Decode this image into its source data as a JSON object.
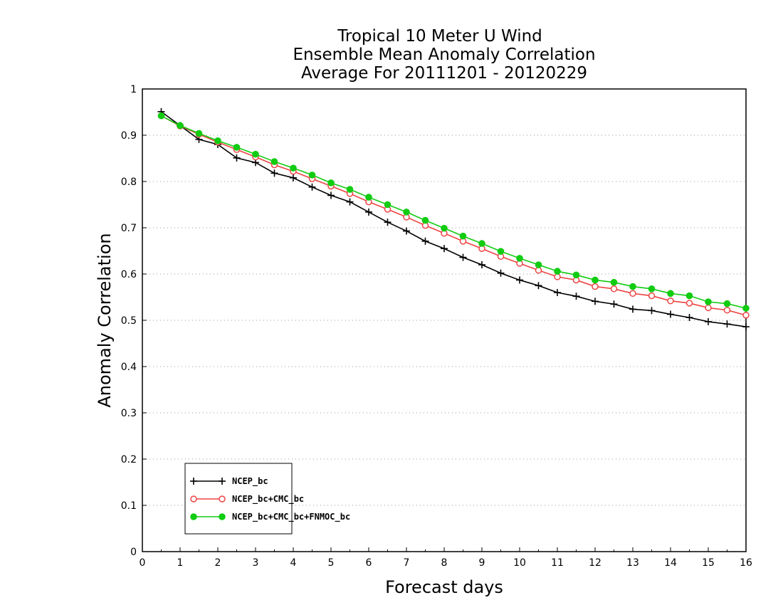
{
  "chart_data": {
    "type": "line",
    "title": [
      "Tropical 10 Meter U Wind",
      "Ensemble Mean Anomaly Correlation",
      "Average For 20111201 - 20120229"
    ],
    "xlabel": "Forecast days",
    "ylabel": "Anomaly Correlation",
    "xlim": [
      0,
      16
    ],
    "ylim": [
      0,
      1
    ],
    "xticks": [
      "0",
      "1",
      "2",
      "3",
      "4",
      "5",
      "6",
      "7",
      "8",
      "9",
      "10",
      "11",
      "12",
      "13",
      "14",
      "15",
      "16"
    ],
    "yticks": [
      "0",
      "0.1",
      "0.2",
      "0.3",
      "0.4",
      "0.5",
      "0.6",
      "0.7",
      "0.8",
      "0.9",
      "1"
    ],
    "grid": "horizontal dotted",
    "legend_position": "bottom-left",
    "x": [
      0.5,
      1,
      1.5,
      2,
      2.5,
      3,
      3.5,
      4,
      4.5,
      5,
      5.5,
      6,
      6.5,
      7,
      7.5,
      8,
      8.5,
      9,
      9.5,
      10,
      10.5,
      11,
      11.5,
      12,
      12.5,
      13,
      13.5,
      14,
      14.5,
      15,
      15.5,
      16
    ],
    "series": [
      {
        "name": "NCEP_bc",
        "color": "#000000",
        "marker": "plus",
        "values": [
          0.951,
          0.921,
          0.891,
          0.88,
          0.851,
          0.841,
          0.818,
          0.808,
          0.788,
          0.77,
          0.756,
          0.734,
          0.712,
          0.693,
          0.671,
          0.655,
          0.636,
          0.62,
          0.602,
          0.587,
          0.575,
          0.56,
          0.552,
          0.541,
          0.535,
          0.524,
          0.521,
          0.513,
          0.506,
          0.497,
          0.492,
          0.486
        ]
      },
      {
        "name": "NCEP_bc+CMC_bc",
        "color": "#ee4444",
        "marker": "open-circle",
        "values": [
          0.942,
          0.92,
          0.902,
          0.885,
          0.869,
          0.853,
          0.836,
          0.822,
          0.806,
          0.79,
          0.774,
          0.756,
          0.74,
          0.723,
          0.705,
          0.688,
          0.671,
          0.655,
          0.638,
          0.623,
          0.608,
          0.594,
          0.587,
          0.573,
          0.568,
          0.558,
          0.553,
          0.542,
          0.537,
          0.527,
          0.522,
          0.511
        ]
      },
      {
        "name": "NCEP_bc+CMC_bc+FNMOC_bc",
        "color": "#11cc11",
        "marker": "filled-circle",
        "values": [
          0.942,
          0.921,
          0.904,
          0.888,
          0.874,
          0.859,
          0.843,
          0.829,
          0.814,
          0.797,
          0.783,
          0.766,
          0.75,
          0.734,
          0.716,
          0.699,
          0.682,
          0.666,
          0.649,
          0.634,
          0.62,
          0.606,
          0.598,
          0.587,
          0.582,
          0.573,
          0.568,
          0.558,
          0.553,
          0.54,
          0.536,
          0.526
        ]
      }
    ]
  }
}
